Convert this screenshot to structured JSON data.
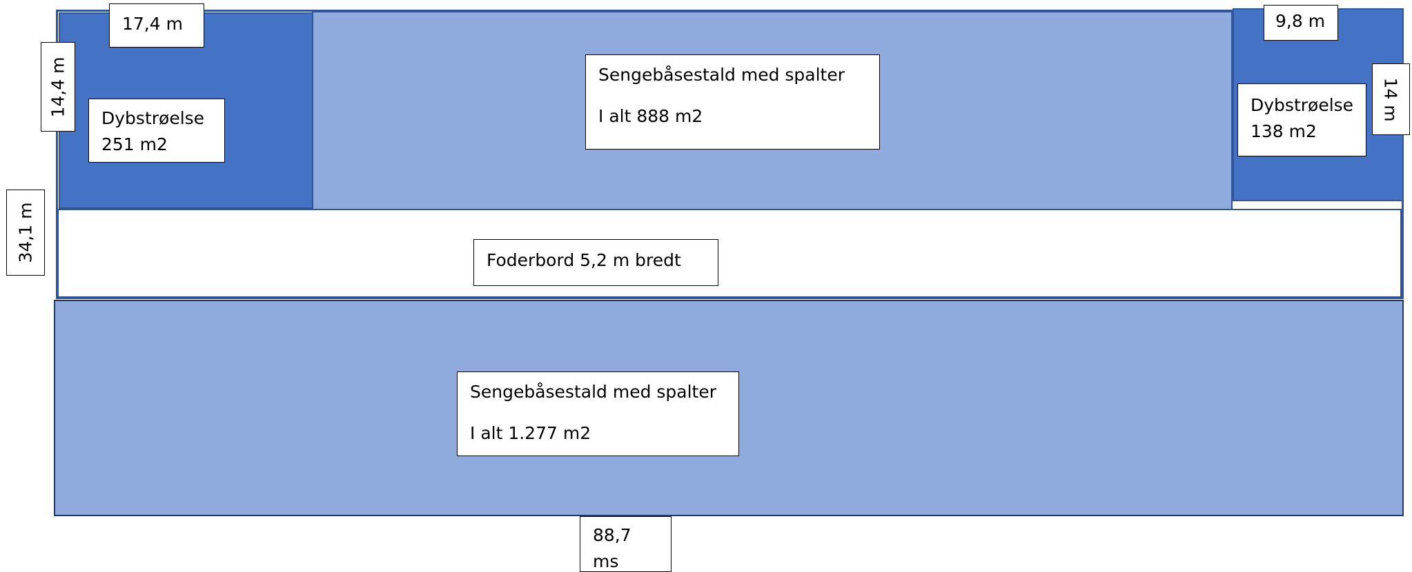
{
  "top_left_area": {
    "title": "Dybstrøelse",
    "area": "251 m2"
  },
  "top_middle_area": {
    "title": "Sengebåsestald med spalter",
    "area": "I alt 888 m2"
  },
  "top_right_area": {
    "title": "Dybstrøelse",
    "area": "138 m2"
  },
  "feed_table": {
    "label": "Foderbord 5,2 m bredt"
  },
  "bottom_area": {
    "title": "Sengebåsestald med spalter",
    "area": "I alt 1.277 m2"
  },
  "dimensions": {
    "top_left_width": "17,4 m",
    "top_left_height": "14,4 m",
    "top_right_width": "9,8 m",
    "top_right_height": "14 m",
    "total_height": "34,1 m",
    "total_length_line1": "88,7",
    "total_length_line2": "ms"
  },
  "colors": {
    "dark_blue_fill": "#4472C4",
    "light_blue_fill": "#8FAADC",
    "outline": "#2F5597"
  }
}
